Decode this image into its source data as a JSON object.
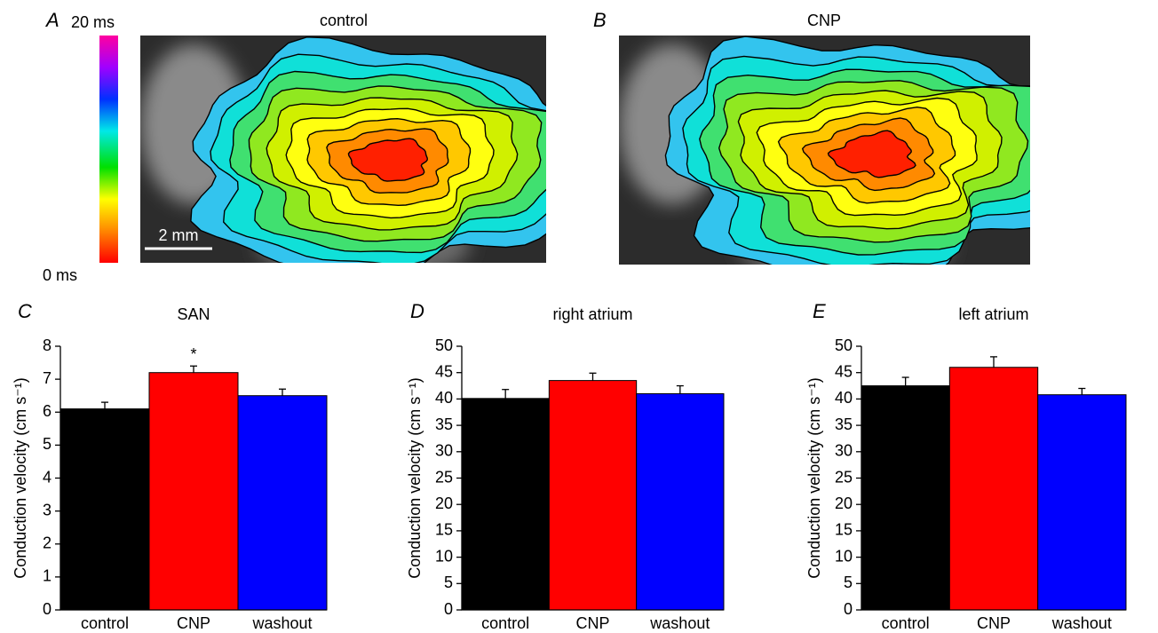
{
  "panels": {
    "A": {
      "label": "A",
      "title": "control",
      "scale_bar": "2 mm",
      "colorbar_max": "20 ms",
      "colorbar_min": "0 ms"
    },
    "B": {
      "label": "B",
      "title": "CNP"
    }
  },
  "chart_data": [
    {
      "type": "bar",
      "label": "C",
      "title": "SAN",
      "ylabel": "Conduction velocity (cm s⁻¹)",
      "categories": [
        "control",
        "CNP",
        "washout"
      ],
      "values": [
        6.1,
        7.2,
        6.5
      ],
      "errors": [
        0.2,
        0.2,
        0.2
      ],
      "colors": [
        "#000000",
        "#ff0000",
        "#0000ff"
      ],
      "ylim": [
        0,
        8
      ],
      "yticks": [
        0,
        1,
        2,
        3,
        4,
        5,
        6,
        7,
        8
      ],
      "annotations": [
        {
          "category": "CNP",
          "text": "*"
        }
      ]
    },
    {
      "type": "bar",
      "label": "D",
      "title": "right atrium",
      "ylabel": "Conduction velocity (cm s⁻¹)",
      "categories": [
        "control",
        "CNP",
        "washout"
      ],
      "values": [
        40.1,
        43.5,
        41
      ],
      "errors": [
        1.7,
        1.4,
        1.5
      ],
      "colors": [
        "#000000",
        "#ff0000",
        "#0000ff"
      ],
      "ylim": [
        0,
        50
      ],
      "yticks": [
        0,
        5,
        10,
        15,
        20,
        25,
        30,
        35,
        40,
        45,
        50
      ]
    },
    {
      "type": "bar",
      "label": "E",
      "title": "left atrium",
      "ylabel": "Conduction velocity (cm s⁻¹)",
      "categories": [
        "control",
        "CNP",
        "washout"
      ],
      "values": [
        42.5,
        46,
        40.8
      ],
      "errors": [
        1.6,
        2,
        1.2
      ],
      "colors": [
        "#000000",
        "#ff0000",
        "#0000ff"
      ],
      "ylim": [
        0,
        50
      ],
      "yticks": [
        0,
        5,
        10,
        15,
        20,
        25,
        30,
        35,
        40,
        45,
        50
      ]
    }
  ]
}
